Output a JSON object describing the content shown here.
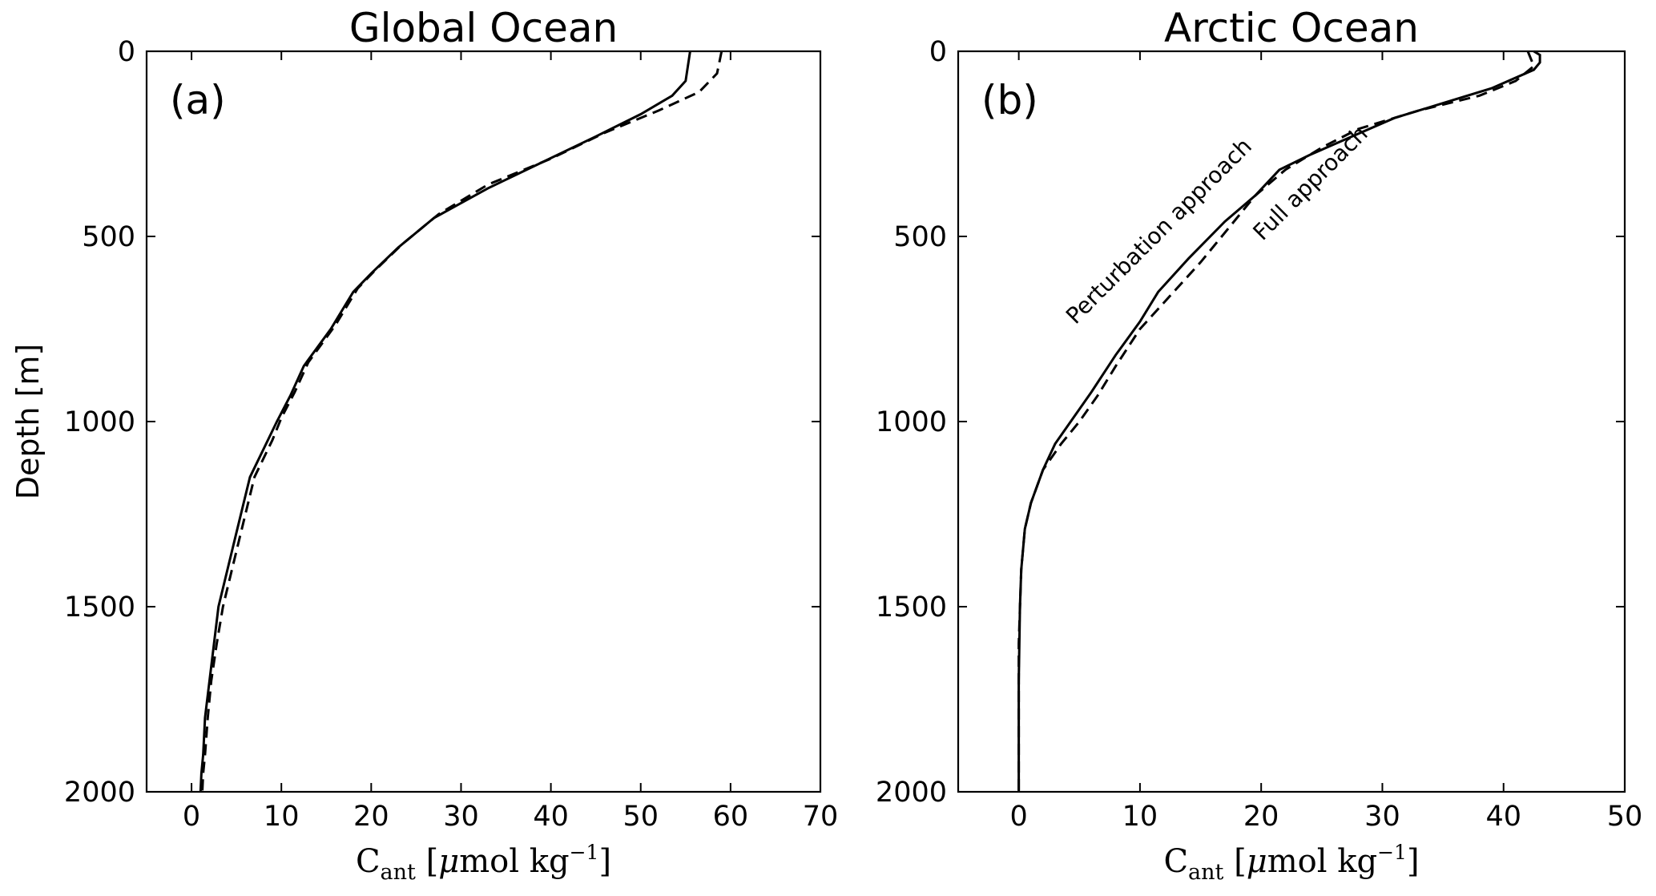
{
  "chart_data": [
    {
      "type": "line",
      "title": "Global Ocean",
      "panel_label": "(a)",
      "xlabel_main": "C",
      "xlabel_sub": "ant",
      "xlabel_unit_open": " [",
      "xlabel_mu": "μ",
      "xlabel_unit": "mol kg",
      "xlabel_sup": "−1",
      "xlabel_unit_close": "]",
      "ylabel": "Depth [m]",
      "xlim": [
        -5,
        70
      ],
      "ylim": [
        2000,
        0
      ],
      "xticks": [
        "0",
        "10",
        "20",
        "30",
        "40",
        "50",
        "60",
        "70"
      ],
      "yticks": [
        "0",
        "500",
        "1000",
        "1500",
        "2000"
      ],
      "grid": false,
      "series": [
        {
          "style": "solid",
          "x": [
            55.5,
            55.0,
            53.5,
            50.0,
            45.0,
            39.0,
            33.0,
            27.0,
            23.0,
            20.0,
            18.0,
            15.5,
            12.5,
            11.0,
            9.5,
            8.5,
            6.5,
            5.0,
            4.0,
            3.0,
            2.5,
            2.0,
            1.5,
            1.3,
            1.1,
            1.0
          ],
          "y": [
            0,
            80,
            120,
            170,
            230,
            300,
            370,
            450,
            530,
            600,
            650,
            750,
            850,
            930,
            1000,
            1050,
            1150,
            1300,
            1400,
            1500,
            1600,
            1700,
            1800,
            1900,
            1950,
            2000
          ]
        },
        {
          "style": "dashed",
          "x": [
            59.0,
            58.5,
            56.5,
            52.0,
            46.0,
            40.0,
            33.0,
            27.5,
            23.5,
            20.5,
            18.5,
            16.0,
            13.0,
            11.5,
            10.0,
            9.0,
            7.0,
            5.5,
            4.5,
            3.5,
            2.8,
            2.2,
            1.8,
            1.5,
            1.3,
            1.2
          ],
          "y": [
            0,
            60,
            110,
            160,
            220,
            290,
            360,
            440,
            520,
            590,
            640,
            740,
            840,
            920,
            990,
            1050,
            1150,
            1300,
            1400,
            1500,
            1600,
            1700,
            1800,
            1900,
            1950,
            2000
          ]
        }
      ]
    },
    {
      "type": "line",
      "title": "Arctic Ocean",
      "panel_label": "(b)",
      "xlabel_main": "C",
      "xlabel_sub": "ant",
      "xlabel_unit_open": " [",
      "xlabel_mu": "μ",
      "xlabel_unit": "mol kg",
      "xlabel_sup": "−1",
      "xlabel_unit_close": "]",
      "xlim": [
        -5,
        50
      ],
      "ylim": [
        2000,
        0
      ],
      "xticks": [
        "0",
        "10",
        "20",
        "30",
        "40",
        "50"
      ],
      "yticks": [
        "0",
        "500",
        "1000",
        "1500",
        "2000"
      ],
      "grid": false,
      "annotations": [
        {
          "text": "Perturbation approach",
          "x": 12,
          "y": 500,
          "rotation": -45
        },
        {
          "text": "Full approach",
          "x": 24.5,
          "y": 370,
          "rotation": -45
        }
      ],
      "series": [
        {
          "style": "solid",
          "x": [
            42.5,
            43.0,
            43.0,
            42.5,
            39.0,
            35.0,
            31.0,
            27.5,
            24.0,
            21.5,
            19.5,
            17.0,
            14.0,
            11.5,
            10.0,
            8.0,
            6.0,
            4.5,
            3.0,
            2.0,
            1.0,
            0.5,
            0.2,
            0.1,
            0.0,
            0.0
          ],
          "y": [
            0,
            10,
            30,
            50,
            100,
            140,
            180,
            230,
            280,
            320,
            390,
            460,
            560,
            650,
            730,
            820,
            920,
            990,
            1060,
            1130,
            1220,
            1290,
            1400,
            1500,
            1700,
            2000
          ]
        },
        {
          "style": "dashed",
          "x": [
            42.0,
            42.5,
            41.0,
            38.0,
            33.0,
            28.0,
            25.0,
            22.0,
            19.5,
            17.5,
            15.0,
            12.5,
            10.0,
            8.0,
            6.5,
            5.0,
            3.5,
            2.0,
            1.0,
            0.5,
            0.2,
            0.0,
            0.0
          ],
          "y": [
            0,
            40,
            80,
            120,
            160,
            210,
            260,
            320,
            390,
            470,
            570,
            660,
            750,
            850,
            930,
            1000,
            1060,
            1130,
            1220,
            1290,
            1400,
            1600,
            2000
          ]
        }
      ]
    }
  ]
}
